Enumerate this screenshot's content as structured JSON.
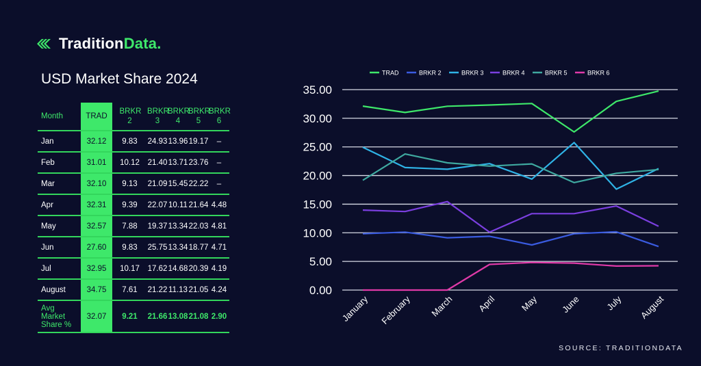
{
  "brand": {
    "name_part1": "Tradition",
    "name_part2": "Data.",
    "accent": "#3ee86a"
  },
  "title": "USD Market Share 2024",
  "table": {
    "headers": [
      "Month",
      "TRAD",
      "BRKR 2",
      "BRKR 3",
      "BRKR 4",
      "BRKR 5",
      "BRKR 6"
    ],
    "rows": [
      [
        "Jan",
        "32.12",
        "9.83",
        "24.93",
        "13.96",
        "19.17",
        "–"
      ],
      [
        "Feb",
        "31.01",
        "10.12",
        "21.40",
        "13.71",
        "23.76",
        "–"
      ],
      [
        "Mar",
        "32.10",
        "9.13",
        "21.09",
        "15.45",
        "22.22",
        "–"
      ],
      [
        "Apr",
        "32.31",
        "9.39",
        "22.07",
        "10.11",
        "21.64",
        "4.48"
      ],
      [
        "May",
        "32.57",
        "7.88",
        "19.37",
        "13.34",
        "22.03",
        "4.81"
      ],
      [
        "Jun",
        "27.60",
        "9.83",
        "25.75",
        "13.34",
        "18.77",
        "4.71"
      ],
      [
        "Jul",
        "32.95",
        "10.17",
        "17.62",
        "14.68",
        "20.39",
        "4.19"
      ],
      [
        "August",
        "34.75",
        "7.61",
        "21.22",
        "11.13",
        "21.05",
        "4.24"
      ]
    ],
    "avg_row": [
      "Avg Market Share %",
      "32.07",
      "9.21",
      "21.66",
      "13.08",
      "21.08",
      "2.90"
    ]
  },
  "chart_data": {
    "type": "line",
    "x": [
      "January",
      "February",
      "March",
      "April",
      "May",
      "June",
      "July",
      "August"
    ],
    "ylim": [
      0,
      35
    ],
    "yticks": [
      "0.00",
      "5.00",
      "10.00",
      "15.00",
      "20.00",
      "25.00",
      "30.00",
      "35.00"
    ],
    "grid": true,
    "legend_position": "top",
    "series": [
      {
        "name": "TRAD",
        "color": "#3ee86a",
        "values": [
          32.12,
          31.01,
          32.1,
          32.31,
          32.57,
          27.6,
          32.95,
          34.75
        ]
      },
      {
        "name": "BRKR 2",
        "color": "#3a5be0",
        "values": [
          9.83,
          10.12,
          9.13,
          9.39,
          7.88,
          9.83,
          10.17,
          7.61
        ]
      },
      {
        "name": "BRKR 3",
        "color": "#2fb3e6",
        "values": [
          24.93,
          21.4,
          21.09,
          22.07,
          19.37,
          25.75,
          17.62,
          21.22
        ]
      },
      {
        "name": "BRKR 4",
        "color": "#7b3fe0",
        "values": [
          13.96,
          13.71,
          15.45,
          10.11,
          13.34,
          13.34,
          14.68,
          11.13
        ]
      },
      {
        "name": "BRKR 5",
        "color": "#3fa9a0",
        "values": [
          19.17,
          23.76,
          22.22,
          21.64,
          22.03,
          18.77,
          20.39,
          21.05
        ]
      },
      {
        "name": "BRKR 6",
        "color": "#e03aa8",
        "values": [
          0,
          0,
          0,
          4.48,
          4.81,
          4.71,
          4.19,
          4.24
        ]
      }
    ]
  },
  "source": "SOURCE: TRADITIONDATA"
}
